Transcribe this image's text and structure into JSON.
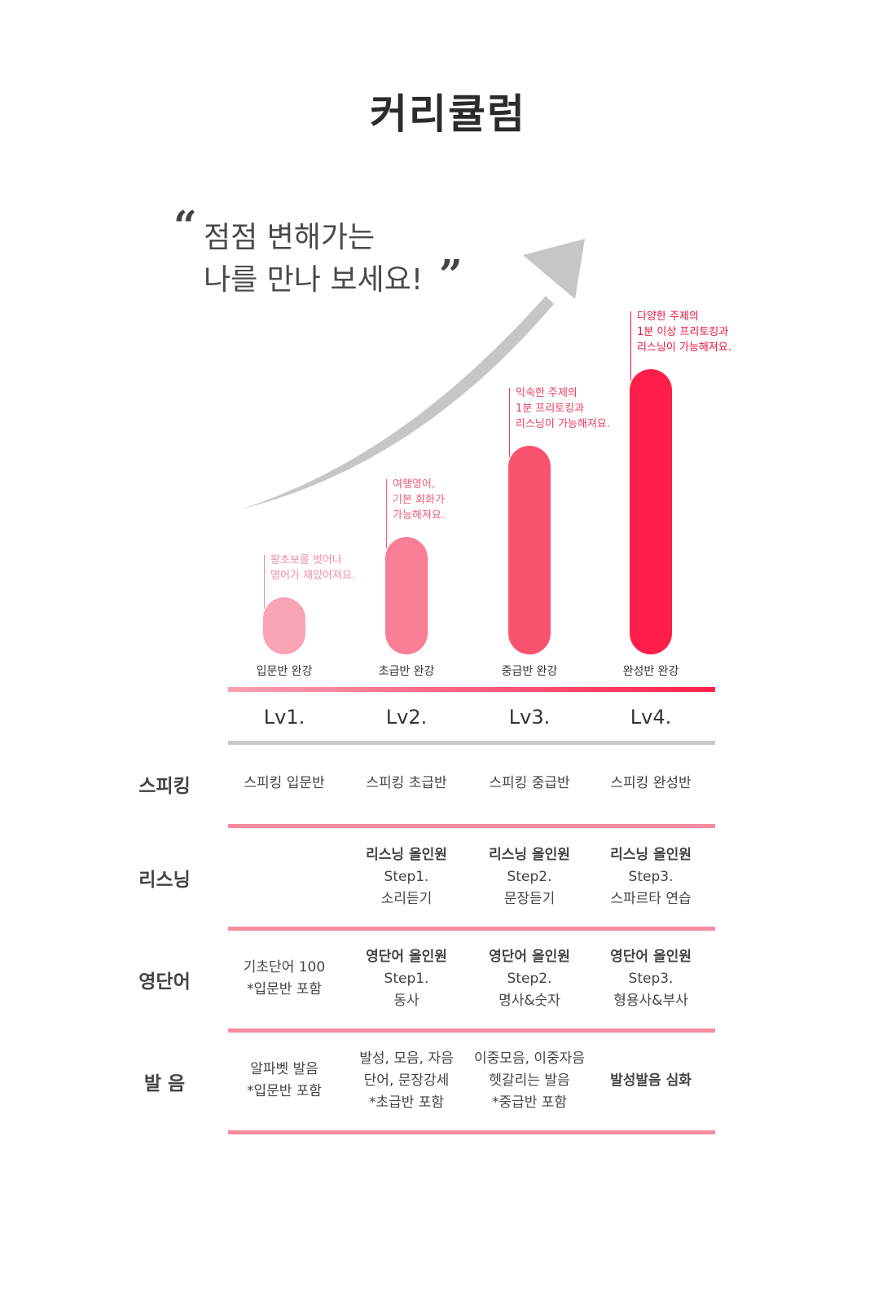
{
  "title": "커리큘럼",
  "headline": {
    "open_quote": "“",
    "line1": "점점 변해가는",
    "line2": "나를 만나 보세요!",
    "close_quote": "”"
  },
  "levels": [
    {
      "bar_label": "입문반 완강",
      "level": "Lv1.",
      "progress": 0.2,
      "color": "#f9a4b5",
      "note_color": "#f58aa0",
      "note": [
        "왕초보를 벗어나",
        "영어가 재밌어져요."
      ]
    },
    {
      "bar_label": "초급반 완강",
      "level": "Lv2.",
      "progress": 0.41,
      "color": "#f97f96",
      "note_color": "#f25d7a",
      "note": [
        "여행영어,",
        "기본 회화가",
        "가능해져요."
      ]
    },
    {
      "bar_label": "중급반 완강",
      "level": "Lv3.",
      "progress": 0.73,
      "color": "#f9536f",
      "note_color": "#f03a5e",
      "note": [
        "익숙한 주제의",
        "1분 프리토킹과",
        "리스닝이 가능해져요."
      ]
    },
    {
      "bar_label": "완성반 완강",
      "level": "Lv4.",
      "progress": 1.0,
      "color": "#ff1e4a",
      "note_color": "#f0123f",
      "note": [
        "다양한 주제의",
        "1분 이상 프리토킹과",
        "리스닝이 가능해져요."
      ]
    }
  ],
  "table": {
    "rows": [
      {
        "head": "스피킹",
        "cells": [
          {
            "lines": [
              "스피킹 입문반"
            ]
          },
          {
            "lines": [
              "스피킹 초급반"
            ]
          },
          {
            "lines": [
              "스피킹 중급반"
            ]
          },
          {
            "lines": [
              "스피킹 완성반"
            ]
          }
        ]
      },
      {
        "head": "리스닝",
        "cells": [
          {
            "lines": []
          },
          {
            "lines": [
              "리스닝 올인원",
              "Step1.",
              "소리듣기"
            ],
            "strong_first": true
          },
          {
            "lines": [
              "리스닝 올인원",
              "Step2.",
              "문장듣기"
            ],
            "strong_first": true
          },
          {
            "lines": [
              "리스닝 올인원",
              "Step3.",
              "스파르타 연습"
            ],
            "strong_first": true
          }
        ]
      },
      {
        "head": "영단어",
        "cells": [
          {
            "lines": [
              "기초단어 100",
              "*입문반 포함"
            ]
          },
          {
            "lines": [
              "영단어 올인원",
              "Step1.",
              "동사"
            ],
            "strong_first": true
          },
          {
            "lines": [
              "영단어 올인원",
              "Step2.",
              "명사&숫자"
            ],
            "strong_first": true
          },
          {
            "lines": [
              "영단어 올인원",
              "Step3.",
              "형용사&부사"
            ],
            "strong_first": true
          }
        ]
      },
      {
        "head": "발 음",
        "cells": [
          {
            "lines": [
              "알파벳 발음",
              "*입문반 포함"
            ]
          },
          {
            "lines": [
              "발성, 모음, 자음",
              "단어, 문장강세",
              "*초급반 포함"
            ]
          },
          {
            "lines": [
              "이중모음, 이중자음",
              "헷갈리는 발음",
              "*중급반 포함"
            ]
          },
          {
            "lines": [
              "발성발음 심화"
            ],
            "strong_first": true
          }
        ]
      }
    ]
  },
  "colors": {
    "accent_gradient_start": "#f8a0b2",
    "accent_gradient_end": "#ff1e4a",
    "divider_gray": "#c9c9c9",
    "row_divider": "#f78ca0",
    "arrow_gray": "#c6c6c6"
  }
}
